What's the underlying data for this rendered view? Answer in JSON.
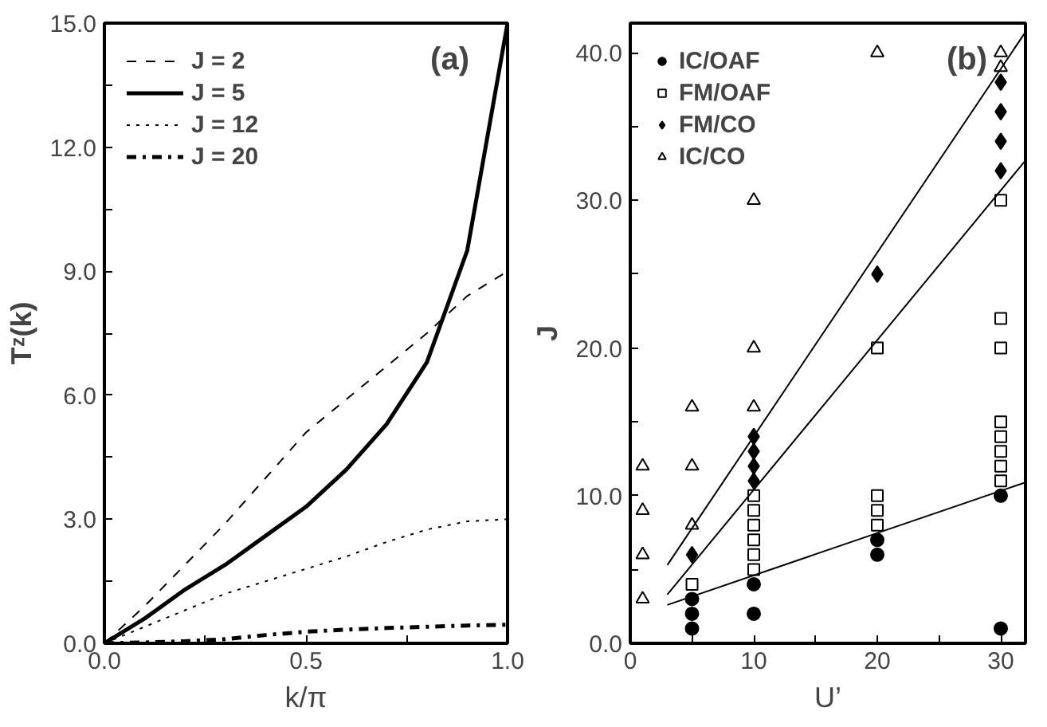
{
  "chart_data": [
    {
      "type": "line",
      "xlabel": "k/π",
      "ylabel": "Tᶻ(k)",
      "annotations": [
        "(a)"
      ],
      "xlim": [
        0,
        1
      ],
      "ylim": [
        0,
        15
      ],
      "xticks": [
        {
          "value": 0,
          "label": "0.0"
        },
        {
          "value": 0.25,
          "label": null
        },
        {
          "value": 0.5,
          "label": "0.5"
        },
        {
          "value": 0.75,
          "label": null
        },
        {
          "value": 1,
          "label": "1.0"
        }
      ],
      "yticks": [
        {
          "value": 0,
          "label": "0.0"
        },
        {
          "value": 1.5,
          "label": null
        },
        {
          "value": 3,
          "label": "3.0"
        },
        {
          "value": 4.5,
          "label": null
        },
        {
          "value": 6,
          "label": "6.0"
        },
        {
          "value": 7.5,
          "label": null
        },
        {
          "value": 9,
          "label": "9.0"
        },
        {
          "value": 10.5,
          "label": null
        },
        {
          "value": 12,
          "label": "12.0"
        },
        {
          "value": 13.5,
          "label": null
        },
        {
          "value": 15,
          "label": "15.0"
        }
      ],
      "x": [
        0,
        0.1,
        0.2,
        0.3,
        0.4,
        0.5,
        0.6,
        0.7,
        0.8,
        0.9,
        1.0
      ],
      "grid": false,
      "legend": "top left",
      "marker": "none",
      "series": [
        {
          "name": "J = 2",
          "color": "#000000",
          "line_style": "dashed",
          "values": [
            0,
            0.9,
            1.9,
            2.9,
            4.0,
            5.1,
            5.9,
            6.7,
            7.5,
            8.4,
            9.0
          ]
        },
        {
          "name": "J = 5",
          "color": "#000000",
          "line_style": "solid",
          "values": [
            0,
            0.6,
            1.3,
            1.9,
            2.6,
            3.3,
            4.2,
            5.3,
            6.8,
            9.5,
            15.0
          ]
        },
        {
          "name": "J = 12",
          "color": "#000000",
          "line_style": "dotted",
          "values": [
            0,
            0.4,
            0.8,
            1.2,
            1.5,
            1.8,
            2.1,
            2.45,
            2.75,
            2.95,
            3.0
          ]
        },
        {
          "name": "J = 20",
          "color": "#000000",
          "line_style": "dashdot",
          "values": [
            0,
            0.02,
            0.05,
            0.1,
            0.2,
            0.28,
            0.33,
            0.37,
            0.4,
            0.43,
            0.45
          ]
        }
      ]
    },
    {
      "type": "scatter",
      "xlabel": "U’",
      "ylabel": "J",
      "annotations": [
        "(b)"
      ],
      "xlim": [
        0,
        32
      ],
      "ylim": [
        0,
        42
      ],
      "xticks": [
        0,
        {
          "value": 5,
          "label": null
        },
        10,
        {
          "value": 15,
          "label": null
        },
        20,
        {
          "value": 25,
          "label": null
        },
        30
      ],
      "yticks": [
        {
          "value": 0,
          "label": "0.0"
        },
        {
          "value": 5,
          "label": null
        },
        {
          "value": 10,
          "label": "10.0"
        },
        {
          "value": 15,
          "label": null
        },
        {
          "value": 20,
          "label": "20.0"
        },
        {
          "value": 25,
          "label": null
        },
        {
          "value": 30,
          "label": "30.0"
        },
        {
          "value": 35,
          "label": null
        },
        {
          "value": 40,
          "label": "40.0"
        }
      ],
      "grid": false,
      "legend": "top left",
      "series": [
        {
          "name": "IC/OAF",
          "color": "#000000",
          "marker": "circle",
          "x": [
            5,
            5,
            5,
            10,
            10,
            20,
            20,
            30,
            30
          ],
          "values": [
            1,
            2,
            3,
            2,
            4,
            6,
            7,
            1,
            10
          ]
        },
        {
          "name": "FM/OAF",
          "color": "#000000",
          "marker": "square",
          "x": [
            5,
            10,
            10,
            10,
            10,
            10,
            10,
            20,
            20,
            20,
            20,
            30,
            30,
            30,
            30,
            30,
            30,
            30,
            30
          ],
          "values": [
            4,
            5,
            6,
            7,
            8,
            9,
            10,
            8,
            9,
            10,
            20,
            11,
            12,
            13,
            14,
            15,
            20,
            22,
            30
          ]
        },
        {
          "name": "FM/CO",
          "color": "#000000",
          "marker": "diamond",
          "x": [
            5,
            10,
            10,
            10,
            10,
            20,
            30,
            30,
            30,
            30
          ],
          "values": [
            6,
            11,
            12,
            13,
            14,
            25,
            32,
            34,
            36,
            38
          ]
        },
        {
          "name": "IC/CO",
          "color": "#000000",
          "marker": "triangle",
          "x": [
            1,
            1,
            1,
            1,
            5,
            5,
            5,
            10,
            10,
            10,
            20,
            30,
            30
          ],
          "values": [
            3,
            6,
            9,
            12,
            8,
            12,
            16,
            16,
            20,
            30,
            40,
            39,
            40
          ]
        },
        {
          "type": "line",
          "color": "#000000",
          "line_style": "solid",
          "x": [
            3,
            32
          ],
          "values": [
            5.3,
            41.4
          ]
        },
        {
          "type": "line",
          "color": "#000000",
          "line_style": "solid",
          "x": [
            3,
            32
          ],
          "values": [
            3.3,
            32.7
          ]
        },
        {
          "type": "line",
          "color": "#000000",
          "line_style": "solid",
          "x": [
            3,
            32
          ],
          "values": [
            2.6,
            10.9
          ]
        }
      ]
    }
  ]
}
